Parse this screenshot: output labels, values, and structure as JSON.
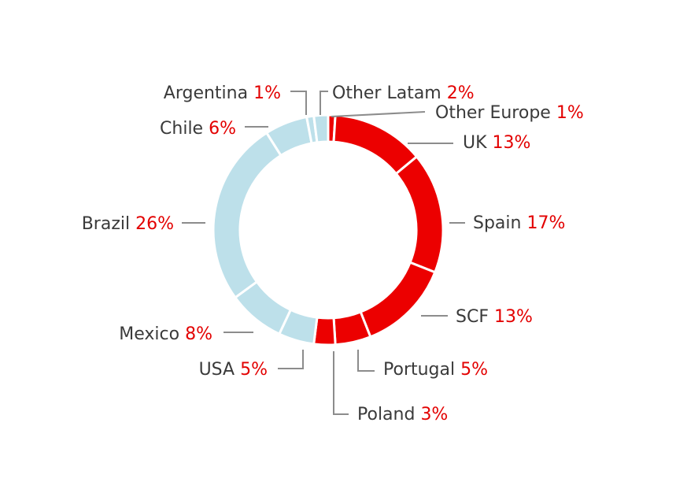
{
  "chart_data": {
    "type": "pie",
    "donut": true,
    "categories": [
      "Other Europe",
      "UK",
      "Spain",
      "SCF",
      "Portugal",
      "Poland",
      "USA",
      "Mexico",
      "Brazil",
      "Chile",
      "Argentina",
      "Other Latam"
    ],
    "values": [
      1,
      13,
      17,
      13,
      5,
      3,
      5,
      8,
      26,
      6,
      1,
      2
    ],
    "value_labels": [
      "1%",
      "13%",
      "17%",
      "13%",
      "5%",
      "3%",
      "5%",
      "8%",
      "26%",
      "6%",
      "1%",
      "2%"
    ],
    "colors": [
      "#ec0000",
      "#ec0000",
      "#ec0000",
      "#ec0000",
      "#ec0000",
      "#ec0000",
      "#bde0ea",
      "#bde0ea",
      "#bde0ea",
      "#bde0ea",
      "#bde0ea",
      "#bde0ea"
    ],
    "legend": "none"
  }
}
